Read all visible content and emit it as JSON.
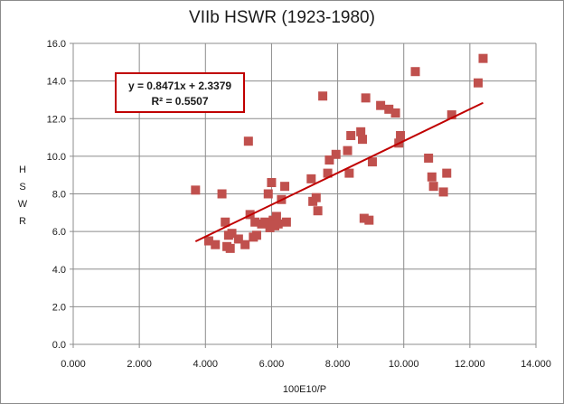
{
  "chart_data": {
    "type": "scatter",
    "title": "VIIb HSWR (1923-1980)",
    "xlabel": "100E10/P",
    "ylabel": "HSWR",
    "xlim": [
      0,
      14
    ],
    "ylim": [
      0,
      16
    ],
    "x_ticks": [
      "0.000",
      "2.000",
      "4.000",
      "6.000",
      "8.000",
      "10.000",
      "12.000",
      "14.000"
    ],
    "y_ticks": [
      "0.0",
      "2.0",
      "4.0",
      "6.0",
      "8.0",
      "10.0",
      "12.0",
      "14.0",
      "16.0"
    ],
    "grid": "major gridlines",
    "marker_color": "#c0504d",
    "trendline_color": "#c00000",
    "trendline": {
      "slope": 0.8471,
      "intercept": 2.3379,
      "x_range": [
        3.7,
        12.4
      ],
      "equation": "y = 0.8471x + 2.3379",
      "r_squared": "R² = 0.5507"
    },
    "points": [
      [
        3.7,
        8.2
      ],
      [
        4.1,
        5.5
      ],
      [
        4.3,
        5.3
      ],
      [
        4.5,
        8.0
      ],
      [
        4.6,
        6.5
      ],
      [
        4.65,
        5.2
      ],
      [
        4.7,
        5.8
      ],
      [
        4.75,
        5.1
      ],
      [
        4.8,
        5.9
      ],
      [
        5.0,
        5.6
      ],
      [
        5.2,
        5.3
      ],
      [
        5.3,
        10.8
      ],
      [
        5.35,
        6.9
      ],
      [
        5.45,
        5.7
      ],
      [
        5.5,
        6.5
      ],
      [
        5.55,
        5.8
      ],
      [
        5.7,
        6.4
      ],
      [
        5.8,
        6.5
      ],
      [
        5.9,
        8.0
      ],
      [
        5.95,
        6.2
      ],
      [
        6.0,
        8.6
      ],
      [
        6.05,
        6.6
      ],
      [
        6.1,
        6.3
      ],
      [
        6.15,
        6.8
      ],
      [
        6.2,
        6.4
      ],
      [
        6.3,
        7.7
      ],
      [
        6.4,
        8.4
      ],
      [
        6.45,
        6.5
      ],
      [
        7.2,
        8.8
      ],
      [
        7.25,
        7.6
      ],
      [
        7.35,
        7.8
      ],
      [
        7.4,
        7.1
      ],
      [
        7.55,
        13.2
      ],
      [
        7.7,
        9.1
      ],
      [
        7.75,
        9.8
      ],
      [
        7.95,
        10.1
      ],
      [
        8.3,
        10.3
      ],
      [
        8.35,
        9.1
      ],
      [
        8.4,
        11.1
      ],
      [
        8.7,
        11.3
      ],
      [
        8.75,
        10.9
      ],
      [
        8.8,
        6.7
      ],
      [
        8.85,
        13.1
      ],
      [
        8.95,
        6.6
      ],
      [
        9.05,
        9.7
      ],
      [
        9.3,
        12.7
      ],
      [
        9.55,
        12.5
      ],
      [
        9.75,
        12.3
      ],
      [
        9.85,
        10.7
      ],
      [
        9.9,
        11.1
      ],
      [
        10.35,
        14.5
      ],
      [
        10.75,
        9.9
      ],
      [
        10.85,
        8.9
      ],
      [
        10.9,
        8.4
      ],
      [
        11.2,
        8.1
      ],
      [
        11.3,
        9.1
      ],
      [
        11.45,
        12.2
      ],
      [
        12.25,
        13.9
      ],
      [
        12.4,
        15.2
      ]
    ]
  }
}
